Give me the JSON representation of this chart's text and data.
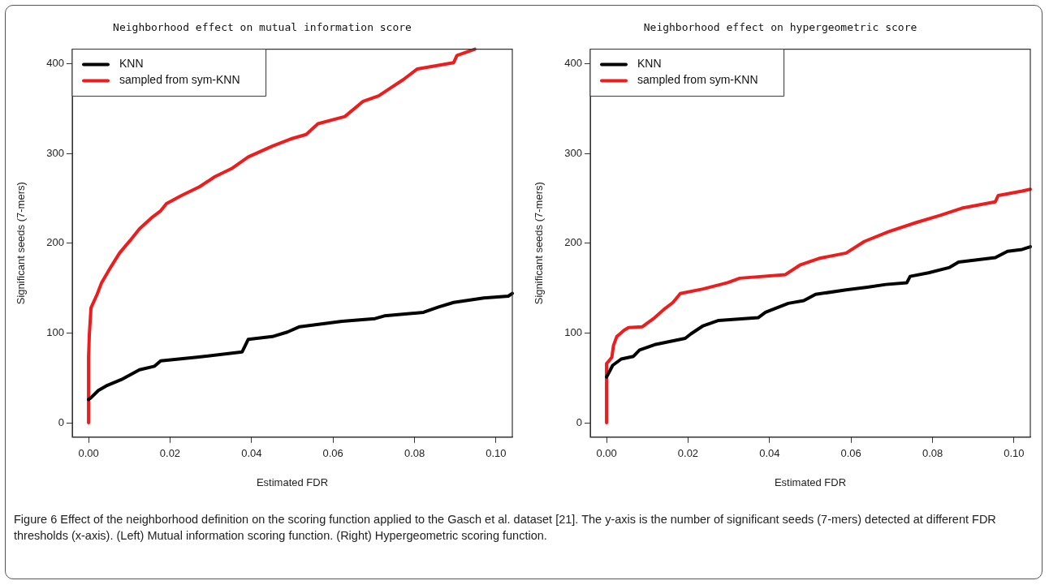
{
  "chart_data": [
    {
      "type": "line",
      "title": "Neighborhood effect on mutual information score",
      "xlabel": "Estimated FDR",
      "ylabel": "Significant seeds (7-mers)",
      "xlim": [
        -0.004,
        0.104
      ],
      "ylim": [
        -16,
        416
      ],
      "xticks": [
        {
          "value": 0,
          "label": "0.00"
        },
        {
          "value": 0.02,
          "label": "0.02"
        },
        {
          "value": 0.04,
          "label": "0.04"
        },
        {
          "value": 0.06,
          "label": "0.06"
        },
        {
          "value": 0.08,
          "label": "0.08"
        },
        {
          "value": 0.1,
          "label": "0.10"
        }
      ],
      "yticks": [
        0,
        100,
        200,
        300,
        400
      ],
      "legend": "top left",
      "marker": "none",
      "annotations": [
        "Figure 6 Effect of the neighborhood definition on the scoring function applied to the Gasch et al. dataset [21]. The y-axis is the number of significant seeds (7-mers) detected at different FDR thresholds (x-axis). (Left) Mutual information scoring function. (Right) Hypergeometric scoring function."
      ],
      "series": [
        {
          "name": "KNN",
          "color": "#000000",
          "x": [
            0,
            0.0006,
            0.0024,
            0.0043,
            0.008,
            0.0125,
            0.0162,
            0.0177,
            0.0266,
            0.0377,
            0.0392,
            0.0451,
            0.0488,
            0.0518,
            0.0622,
            0.0703,
            0.0726,
            0.0822,
            0.0859,
            0.0896,
            0.097,
            0.103,
            0.104
          ],
          "values": [
            26,
            28,
            36,
            41,
            48,
            59,
            63,
            69,
            73,
            79,
            93,
            96,
            101,
            107,
            113,
            116,
            119,
            123,
            129,
            134,
            139,
            141,
            144
          ]
        },
        {
          "name": "sampled from sym-KNN",
          "color": "#ee1c1c",
          "x": [
            0,
            0,
            0.0002,
            0.0006,
            0.0021,
            0.0032,
            0.0054,
            0.0076,
            0.0102,
            0.0125,
            0.0154,
            0.0177,
            0.0191,
            0.0228,
            0.0273,
            0.031,
            0.0351,
            0.0392,
            0.0451,
            0.0496,
            0.0534,
            0.0563,
            0.0629,
            0.0674,
            0.0712,
            0.0742,
            0.0772,
            0.0807,
            0.0896,
            0.0904,
            0.0948
          ],
          "values": [
            0,
            73,
            99,
            128,
            143,
            156,
            173,
            189,
            203,
            216,
            228,
            236,
            244,
            253,
            263,
            274,
            283,
            296,
            308,
            316,
            321,
            333,
            341,
            358,
            364,
            373,
            382,
            394,
            401,
            409,
            416
          ]
        }
      ]
    },
    {
      "type": "line",
      "title": "Neighborhood effect on hypergeometric score",
      "xlabel": "Estimated FDR",
      "ylabel": "Significant seeds (7-mers)",
      "xlim": [
        -0.004,
        0.104
      ],
      "ylim": [
        -16,
        416
      ],
      "xticks": [
        {
          "value": 0,
          "label": "0.00"
        },
        {
          "value": 0.02,
          "label": "0.02"
        },
        {
          "value": 0.04,
          "label": "0.04"
        },
        {
          "value": 0.06,
          "label": "0.06"
        },
        {
          "value": 0.08,
          "label": "0.08"
        },
        {
          "value": 0.1,
          "label": "0.10"
        }
      ],
      "yticks": [
        0,
        100,
        200,
        300,
        400
      ],
      "legend": "top left",
      "marker": "none",
      "series": [
        {
          "name": "KNN",
          "color": "#000000",
          "x": [
            0,
            0.0006,
            0.0015,
            0.0036,
            0.0066,
            0.0081,
            0.0118,
            0.0193,
            0.0207,
            0.0237,
            0.0275,
            0.0372,
            0.039,
            0.0446,
            0.0484,
            0.0513,
            0.0588,
            0.064,
            0.0685,
            0.0737,
            0.0745,
            0.079,
            0.0842,
            0.0864,
            0.0954,
            0.0984,
            0.102,
            0.104
          ],
          "values": [
            51,
            56,
            64,
            71,
            74,
            81,
            87,
            94,
            99,
            108,
            114,
            117,
            123,
            133,
            136,
            143,
            148,
            151,
            154,
            156,
            163,
            167,
            173,
            179,
            184,
            191,
            193,
            196
          ]
        },
        {
          "name": "sampled from sym-KNN",
          "color": "#ee1c1c",
          "x": [
            0,
            0,
            0.0006,
            0.0013,
            0.0017,
            0.0025,
            0.0043,
            0.0054,
            0.0088,
            0.0118,
            0.014,
            0.0163,
            0.0181,
            0.0237,
            0.0297,
            0.0327,
            0.0439,
            0.0476,
            0.0521,
            0.0588,
            0.0633,
            0.0693,
            0.076,
            0.0819,
            0.0872,
            0.0954,
            0.0961,
            0.102,
            0.104
          ],
          "values": [
            0,
            66,
            69,
            73,
            86,
            96,
            103,
            106,
            107,
            117,
            126,
            134,
            144,
            149,
            156,
            161,
            165,
            176,
            183,
            189,
            202,
            213,
            223,
            231,
            239,
            246,
            253,
            258,
            260
          ]
        }
      ]
    }
  ]
}
